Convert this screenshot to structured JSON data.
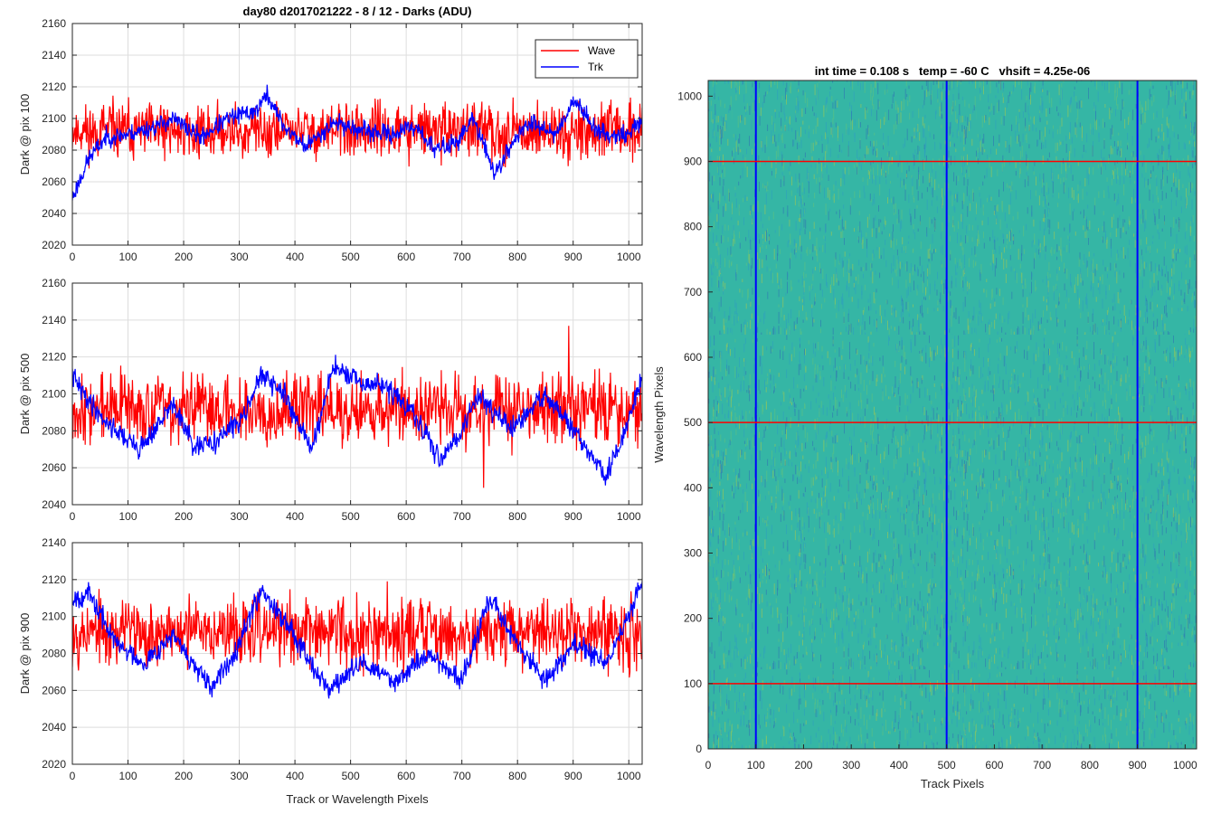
{
  "figure_title": "day80 d2017021222 - 8 / 12 - Darks (ADU)",
  "chart_data": [
    {
      "type": "line",
      "title": "day80 d2017021222 - 8 / 12 - Darks (ADU)",
      "ylabel": "Dark @ pix 100",
      "xlabel": "",
      "xlim": [
        0,
        1024
      ],
      "ylim": [
        2020,
        2160
      ],
      "xticks": [
        0,
        100,
        200,
        300,
        400,
        500,
        600,
        700,
        800,
        900,
        1000
      ],
      "yticks": [
        2020,
        2040,
        2060,
        2080,
        2100,
        2120,
        2140,
        2160
      ],
      "grid": true,
      "legend": {
        "position": "top-right",
        "entries": [
          "Wave",
          "Trk"
        ]
      },
      "series": [
        {
          "name": "Wave",
          "color": "#ff0000",
          "mean": 2092,
          "noise": 15,
          "seed": 11
        },
        {
          "name": "Trk",
          "color": "#0000ff",
          "mean": 2088,
          "noise": 5,
          "seed": 23,
          "trend_x": [
            0,
            30,
            60,
            100,
            150,
            180,
            230,
            280,
            330,
            350,
            380,
            420,
            470,
            520,
            570,
            620,
            650,
            690,
            720,
            760,
            800,
            830,
            870,
            900,
            950,
            1000,
            1024
          ],
          "trend_y": [
            2050,
            2075,
            2088,
            2090,
            2095,
            2100,
            2088,
            2100,
            2105,
            2115,
            2095,
            2082,
            2098,
            2092,
            2090,
            2095,
            2080,
            2085,
            2100,
            2065,
            2090,
            2098,
            2090,
            2112,
            2090,
            2090,
            2100
          ]
        }
      ]
    },
    {
      "type": "line",
      "ylabel": "Dark @ pix 500",
      "xlabel": "",
      "xlim": [
        0,
        1024
      ],
      "ylim": [
        2040,
        2160
      ],
      "xticks": [
        0,
        100,
        200,
        300,
        400,
        500,
        600,
        700,
        800,
        900,
        1000
      ],
      "yticks": [
        2040,
        2060,
        2080,
        2100,
        2120,
        2140,
        2160
      ],
      "grid": true,
      "series": [
        {
          "name": "Wave",
          "color": "#ff0000",
          "mean": 2092,
          "noise": 16,
          "seed": 37
        },
        {
          "name": "Trk",
          "color": "#0000ff",
          "mean": 2090,
          "noise": 5,
          "seed": 41,
          "trend_x": [
            0,
            20,
            60,
            120,
            160,
            180,
            220,
            260,
            300,
            340,
            380,
            430,
            470,
            520,
            560,
            610,
            660,
            700,
            730,
            790,
            850,
            900,
            960,
            1000,
            1024
          ],
          "trend_y": [
            2110,
            2100,
            2085,
            2070,
            2085,
            2095,
            2070,
            2075,
            2085,
            2110,
            2100,
            2070,
            2115,
            2105,
            2105,
            2090,
            2065,
            2080,
            2100,
            2080,
            2100,
            2080,
            2055,
            2085,
            2110
          ]
        }
      ]
    },
    {
      "type": "line",
      "ylabel": "Dark @ pix 900",
      "xlabel": "Track or Wavelength Pixels",
      "xlim": [
        0,
        1024
      ],
      "ylim": [
        2020,
        2140
      ],
      "xticks": [
        0,
        100,
        200,
        300,
        400,
        500,
        600,
        700,
        800,
        900,
        1000
      ],
      "yticks": [
        2020,
        2040,
        2060,
        2080,
        2100,
        2120,
        2140
      ],
      "grid": true,
      "series": [
        {
          "name": "Wave",
          "color": "#ff0000",
          "mean": 2092,
          "noise": 16,
          "seed": 53
        },
        {
          "name": "Trk",
          "color": "#0000ff",
          "mean": 2088,
          "noise": 5,
          "seed": 67,
          "trend_x": [
            0,
            30,
            80,
            130,
            180,
            250,
            290,
            340,
            400,
            460,
            520,
            580,
            640,
            700,
            750,
            800,
            850,
            900,
            960,
            1000,
            1024
          ],
          "trend_y": [
            2110,
            2112,
            2085,
            2075,
            2090,
            2060,
            2080,
            2115,
            2090,
            2060,
            2075,
            2065,
            2080,
            2065,
            2110,
            2085,
            2065,
            2085,
            2075,
            2100,
            2120
          ]
        }
      ]
    },
    {
      "type": "heatmap",
      "title": "int time = 0.108 s   temp = -60 C   vhsift = 4.25e-06",
      "xlabel": "Track Pixels",
      "ylabel": "Wavelength Pixels",
      "xlim": [
        0,
        1024
      ],
      "ylim": [
        0,
        1024
      ],
      "xticks": [
        0,
        100,
        200,
        300,
        400,
        500,
        600,
        700,
        800,
        900,
        1000
      ],
      "yticks": [
        0,
        100,
        200,
        300,
        400,
        500,
        600,
        700,
        800,
        900,
        1000
      ],
      "colormap": [
        "#2d6fb4",
        "#2b9dc1",
        "#35b6a5",
        "#62c27a",
        "#a8c84a"
      ],
      "vertical_markers": {
        "x": [
          100,
          500,
          900
        ],
        "color": "#0000ff"
      },
      "horizontal_markers": {
        "y": [
          100,
          500,
          900
        ],
        "color": "#ff0000"
      }
    }
  ]
}
